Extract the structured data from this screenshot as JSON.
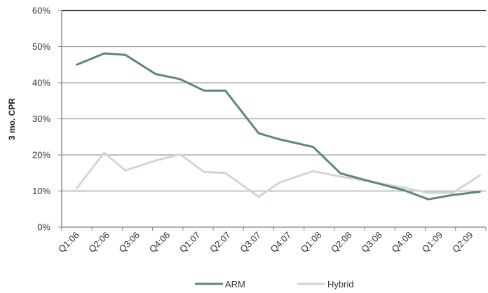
{
  "chart_data": {
    "type": "line",
    "title": "",
    "xlabel": "",
    "ylabel": "3 mo. CPR",
    "categories": [
      "Q1:06",
      "Q2:06",
      "Q3:06",
      "Q4:06",
      "Q1:07",
      "Q2:07",
      "Q3:07",
      "Q4:07",
      "Q1:08",
      "Q2:08",
      "Q3:08",
      "Q4:08",
      "Q1:09",
      "Q2:09"
    ],
    "x": [
      0,
      1,
      2,
      3,
      4,
      5,
      6,
      7,
      8,
      9,
      10,
      11,
      12,
      13
    ],
    "y_ticks": [
      "0%",
      "10%",
      "20%",
      "30%",
      "40%",
      "50%",
      "60%"
    ],
    "ylim": [
      0,
      60
    ],
    "grid": true,
    "legend_position": "bottom",
    "series": [
      {
        "name": "ARM",
        "color": "#5a8a76",
        "x": [
          0,
          0.9,
          1.6,
          2.6,
          3.4,
          4.2,
          4.9,
          6.0,
          6.7,
          7.8,
          8.7,
          9.8,
          10.8,
          11.6,
          12.4,
          13.3
        ],
        "values": [
          45.0,
          48.1,
          47.7,
          42.4,
          41.0,
          37.8,
          37.8,
          26.0,
          24.3,
          22.2,
          14.9,
          12.4,
          10.2,
          7.7,
          8.9,
          9.8
        ]
      },
      {
        "name": "Hybrid",
        "color": "#d6d6c8",
        "x": [
          0,
          0.9,
          1.6,
          2.6,
          3.4,
          4.2,
          4.9,
          6.0,
          6.7,
          7.8,
          8.7,
          9.8,
          10.8,
          11.6,
          12.4,
          13.3
        ],
        "values": [
          10.8,
          20.6,
          15.7,
          18.4,
          20.2,
          15.3,
          15.0,
          8.4,
          12.4,
          15.5,
          14.0,
          12.4,
          10.9,
          9.5,
          9.5,
          14.3
        ]
      }
    ]
  }
}
